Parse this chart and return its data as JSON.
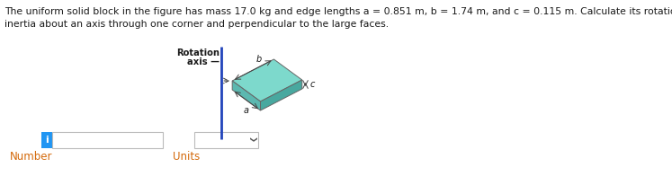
{
  "title_line1": "The uniform solid block in the figure has mass 17.0 kg and edge lengths a = 0.851 m, b = 1.74 m, and c = 0.115 m. Calculate its rotational",
  "title_line2": "inertia about an axis through one corner and perpendicular to the large faces.",
  "rotation_label1": "Rotation",
  "rotation_label2": "axis",
  "dim_a": "a",
  "dim_b": "b",
  "dim_c": "c",
  "number_label": "Number",
  "units_label": "Units",
  "block_color_top": "#7dd9cc",
  "block_color_front": "#5cb8b0",
  "block_color_right": "#48a89f",
  "axis_color": "#2244bb",
  "text_color": "#1a1a1a",
  "label_color": "#555555",
  "bg_color": "#ffffff",
  "input_border": "#bbbbbb",
  "i_button_color": "#2196F3",
  "fig_width": 7.47,
  "fig_height": 2.06,
  "dpi": 100
}
